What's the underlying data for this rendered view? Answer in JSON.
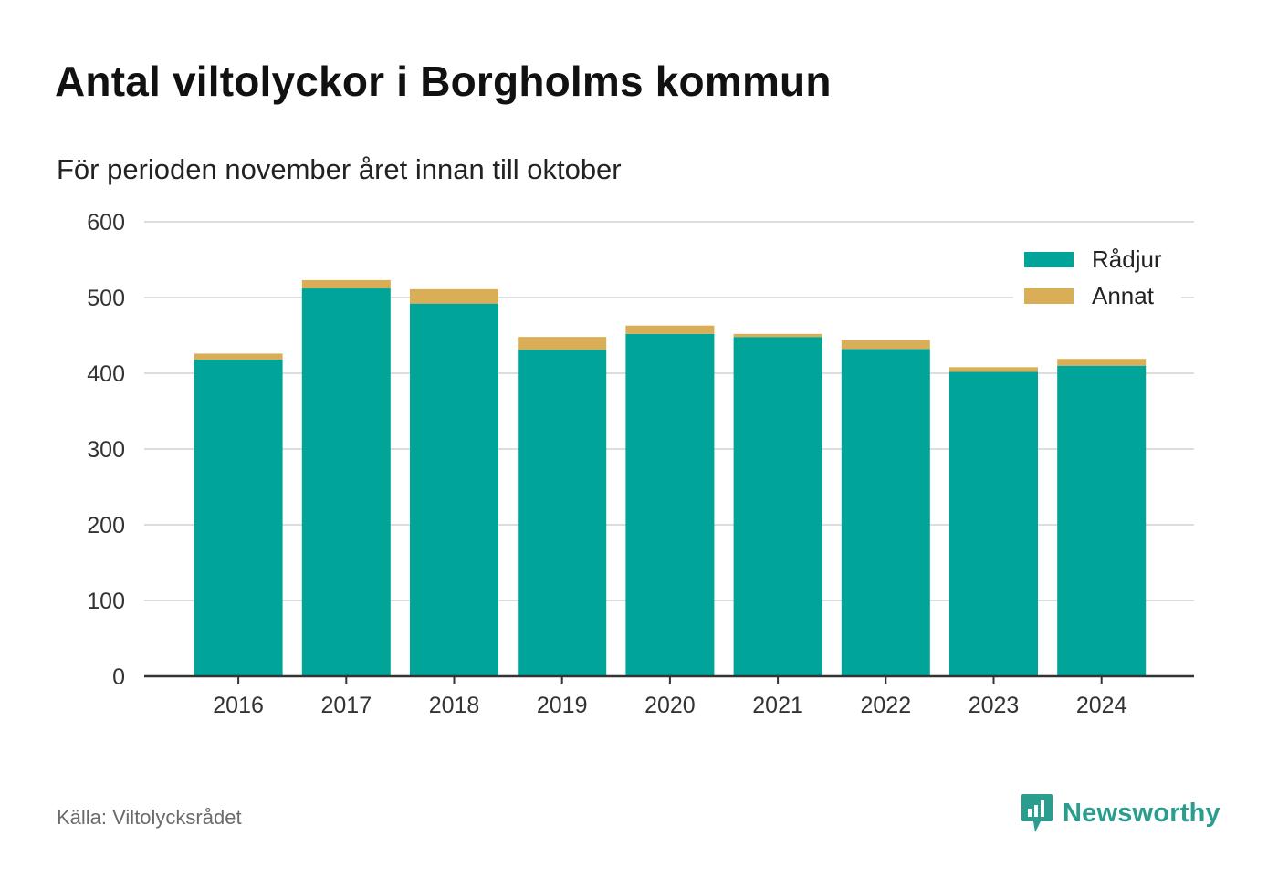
{
  "title": "Antal viltolyckor i Borgholms kommun",
  "subtitle": "För perioden november året innan till oktober",
  "source": "Källa: Viltolycksrådet",
  "brand": "Newsworthy",
  "colors": {
    "radjur": "#00a499",
    "annat": "#d9ae56",
    "grid": "#dddddd",
    "axis": "#333333",
    "brand": "#2a9d8f"
  },
  "chart_data": {
    "type": "bar",
    "stacked": true,
    "categories": [
      "2016",
      "2017",
      "2018",
      "2019",
      "2020",
      "2021",
      "2022",
      "2023",
      "2024"
    ],
    "series": [
      {
        "name": "Rådjur",
        "values": [
          418,
          512,
          492,
          431,
          452,
          448,
          432,
          402,
          410
        ]
      },
      {
        "name": "Annat",
        "values": [
          8,
          11,
          19,
          17,
          11,
          4,
          12,
          6,
          9
        ]
      }
    ],
    "ylim": [
      0,
      600
    ],
    "yticks": [
      0,
      100,
      200,
      300,
      400,
      500,
      600
    ],
    "grid": true,
    "legend": "top-right"
  }
}
